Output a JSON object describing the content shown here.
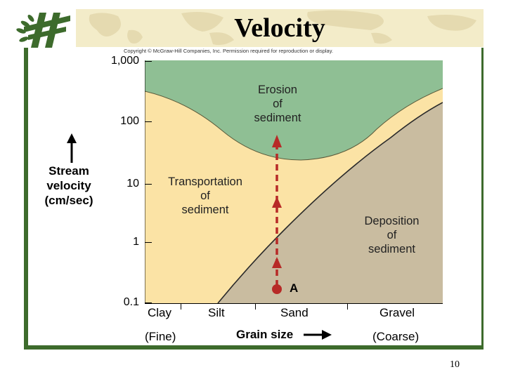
{
  "slide": {
    "title": "Velocity",
    "copyright": "Copyright © McGraw-Hill Companies, Inc. Permission required for reproduction or display.",
    "page_number": "10"
  },
  "diagram": {
    "y_axis": {
      "label_lines": [
        "Stream",
        "velocity",
        "(cm/sec)"
      ],
      "ticks": [
        "1,000",
        "100",
        "10",
        "1",
        "0.1"
      ]
    },
    "x_axis": {
      "categories": [
        "Clay",
        "Silt",
        "Sand",
        "Gravel"
      ],
      "left_note": "(Fine)",
      "label": "Grain size",
      "right_note": "(Coarse)"
    },
    "regions": {
      "erosion": {
        "lines": [
          "Erosion",
          "of",
          "sediment"
        ],
        "color": "#8fbf94"
      },
      "transport": {
        "lines": [
          "Transportation",
          "of",
          "sediment"
        ],
        "color": "#fbe3a5"
      },
      "deposition": {
        "lines": [
          "Deposition",
          "of",
          "sediment"
        ],
        "color": "#c9bca0"
      }
    },
    "point_label": "A",
    "arrow_color": "#b72a27"
  }
}
